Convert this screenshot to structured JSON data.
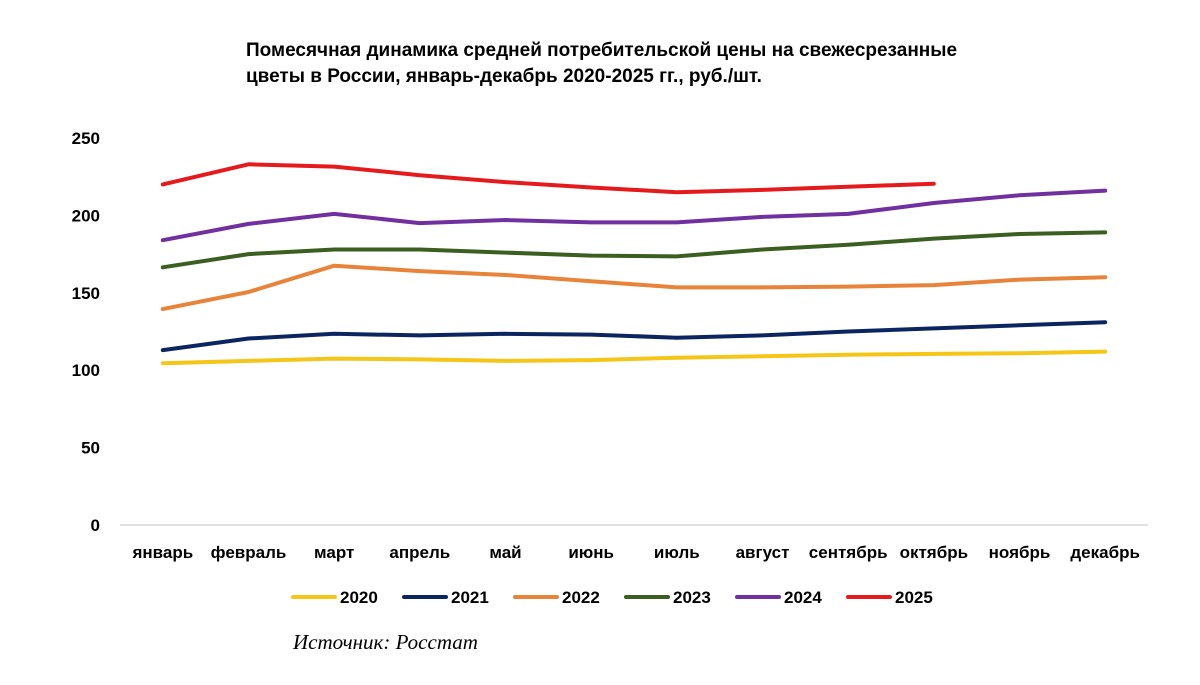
{
  "chart_data": {
    "type": "line",
    "title_lines": [
      "Помесячная динамика средней потребительской цены на свежесрезанные",
      "цветы в России, январь-декабрь 2020-2025 гг., руб./шт."
    ],
    "xlabel": "",
    "ylabel": "",
    "categories": [
      "январь",
      "февраль",
      "март",
      "апрель",
      "май",
      "июнь",
      "июль",
      "август",
      "сентябрь",
      "октябрь",
      "ноябрь",
      "декабрь"
    ],
    "ylim": [
      0,
      250
    ],
    "yticks": [
      0,
      50,
      100,
      150,
      200,
      250
    ],
    "grid": false,
    "legend_position": "bottom",
    "series": [
      {
        "name": "2020",
        "color": "#F5C518",
        "values": [
          104.5,
          106,
          107.5,
          107,
          106,
          106.5,
          108,
          109,
          110,
          110.5,
          111,
          112
        ]
      },
      {
        "name": "2021",
        "color": "#0B2560",
        "values": [
          113,
          120.5,
          123.5,
          122.5,
          123.5,
          123,
          121,
          122.5,
          125,
          127,
          129,
          131
        ]
      },
      {
        "name": "2022",
        "color": "#E8833A",
        "values": [
          139.5,
          150.5,
          167.5,
          164,
          161.5,
          157.5,
          153.5,
          153.5,
          154,
          155,
          158.5,
          160
        ]
      },
      {
        "name": "2023",
        "color": "#3A5F20",
        "values": [
          166.5,
          175,
          178,
          178,
          176,
          174,
          173.5,
          178,
          181,
          185,
          188,
          189
        ]
      },
      {
        "name": "2024",
        "color": "#7030A0",
        "values": [
          184,
          194.5,
          201,
          195,
          197,
          195.5,
          195.5,
          199,
          201,
          208,
          213,
          216
        ]
      },
      {
        "name": "2025",
        "color": "#E41A1C",
        "values": [
          220,
          233,
          231.5,
          226,
          221.5,
          218,
          215,
          216.5,
          218.5,
          220.5,
          null,
          null
        ]
      }
    ]
  },
  "source_note": "Источник: Росстат"
}
